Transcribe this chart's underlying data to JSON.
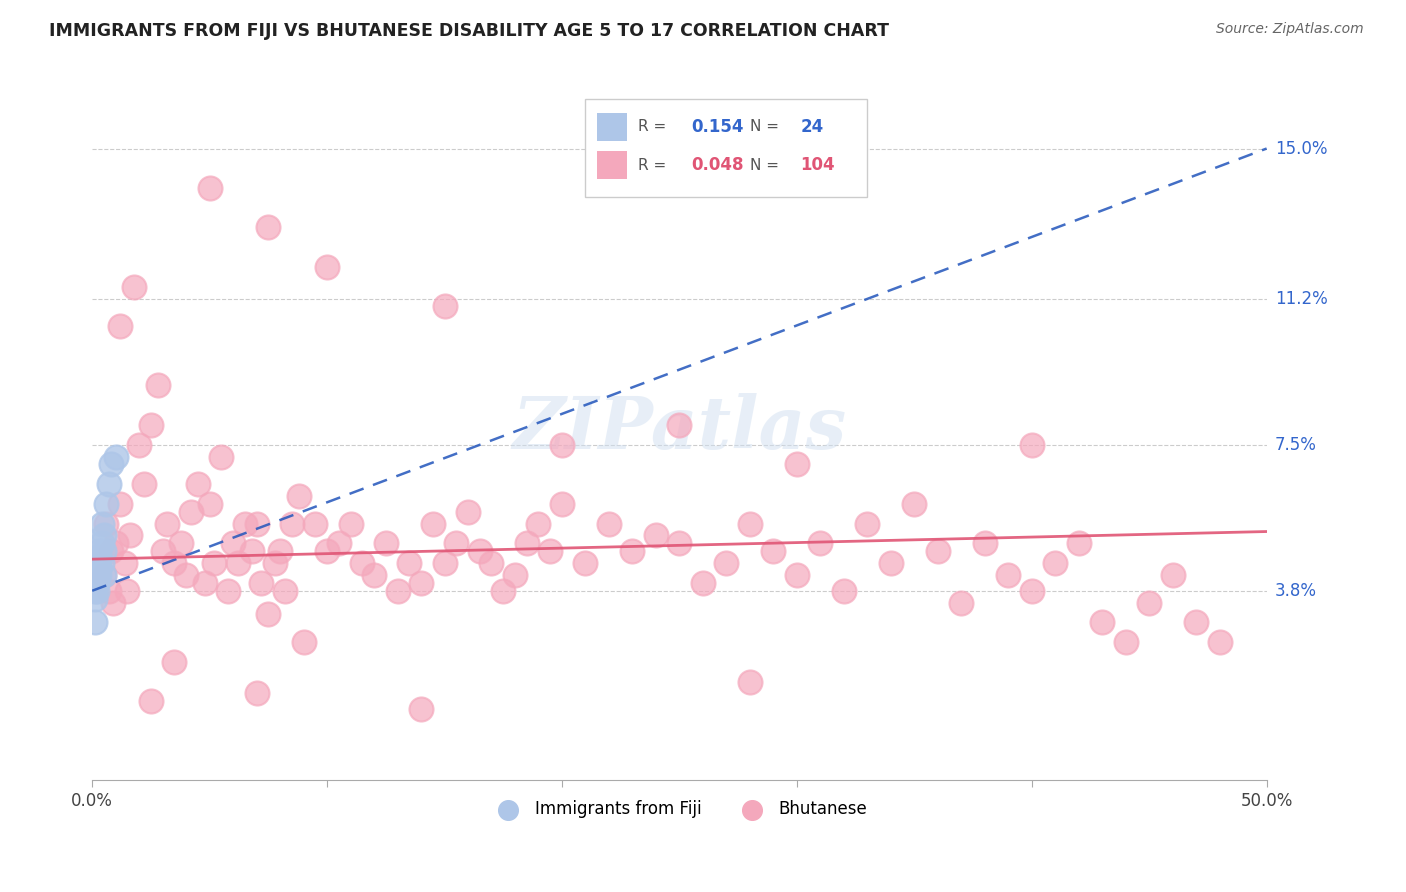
{
  "title": "IMMIGRANTS FROM FIJI VS BHUTANESE DISABILITY AGE 5 TO 17 CORRELATION CHART",
  "source": "Source: ZipAtlas.com",
  "ylabel_ticks": [
    "3.8%",
    "7.5%",
    "11.2%",
    "15.0%"
  ],
  "ylabel_values": [
    0.038,
    0.075,
    0.112,
    0.15
  ],
  "xlim": [
    0.0,
    0.5
  ],
  "ylim": [
    -0.01,
    0.168
  ],
  "fiji_R": "0.154",
  "fiji_N": "24",
  "bhutan_R": "0.048",
  "bhutan_N": "104",
  "fiji_color": "#aec6e8",
  "bhutan_color": "#f4a8bc",
  "fiji_line_color": "#2255bb",
  "bhutan_line_color": "#e05575",
  "fiji_line_style": "--",
  "bhutan_line_style": "-",
  "fiji_x": [
    0.001,
    0.001,
    0.001,
    0.001,
    0.001,
    0.002,
    0.002,
    0.002,
    0.002,
    0.002,
    0.003,
    0.003,
    0.003,
    0.003,
    0.004,
    0.004,
    0.004,
    0.005,
    0.005,
    0.005,
    0.006,
    0.007,
    0.008,
    0.01
  ],
  "fiji_y": [
    0.042,
    0.04,
    0.038,
    0.036,
    0.03,
    0.045,
    0.043,
    0.042,
    0.04,
    0.038,
    0.048,
    0.046,
    0.044,
    0.042,
    0.055,
    0.05,
    0.045,
    0.052,
    0.048,
    0.042,
    0.06,
    0.065,
    0.07,
    0.072
  ],
  "bhutan_x": [
    0.005,
    0.006,
    0.007,
    0.008,
    0.009,
    0.01,
    0.012,
    0.014,
    0.015,
    0.016,
    0.018,
    0.02,
    0.022,
    0.025,
    0.028,
    0.03,
    0.032,
    0.035,
    0.038,
    0.04,
    0.042,
    0.045,
    0.048,
    0.05,
    0.052,
    0.055,
    0.058,
    0.06,
    0.062,
    0.065,
    0.068,
    0.07,
    0.072,
    0.075,
    0.078,
    0.08,
    0.082,
    0.085,
    0.088,
    0.09,
    0.095,
    0.1,
    0.105,
    0.11,
    0.115,
    0.12,
    0.125,
    0.13,
    0.135,
    0.14,
    0.145,
    0.15,
    0.155,
    0.16,
    0.165,
    0.17,
    0.175,
    0.18,
    0.185,
    0.19,
    0.195,
    0.2,
    0.21,
    0.22,
    0.23,
    0.24,
    0.25,
    0.26,
    0.27,
    0.28,
    0.29,
    0.3,
    0.31,
    0.32,
    0.33,
    0.34,
    0.35,
    0.36,
    0.37,
    0.38,
    0.39,
    0.4,
    0.41,
    0.42,
    0.43,
    0.44,
    0.45,
    0.46,
    0.47,
    0.48,
    0.012,
    0.025,
    0.05,
    0.075,
    0.1,
    0.15,
    0.2,
    0.25,
    0.3,
    0.4,
    0.035,
    0.07,
    0.14,
    0.28
  ],
  "bhutan_y": [
    0.042,
    0.055,
    0.038,
    0.048,
    0.035,
    0.05,
    0.06,
    0.045,
    0.038,
    0.052,
    0.115,
    0.075,
    0.065,
    0.08,
    0.09,
    0.048,
    0.055,
    0.045,
    0.05,
    0.042,
    0.058,
    0.065,
    0.04,
    0.06,
    0.045,
    0.072,
    0.038,
    0.05,
    0.045,
    0.055,
    0.048,
    0.055,
    0.04,
    0.032,
    0.045,
    0.048,
    0.038,
    0.055,
    0.062,
    0.025,
    0.055,
    0.048,
    0.05,
    0.055,
    0.045,
    0.042,
    0.05,
    0.038,
    0.045,
    0.04,
    0.055,
    0.045,
    0.05,
    0.058,
    0.048,
    0.045,
    0.038,
    0.042,
    0.05,
    0.055,
    0.048,
    0.06,
    0.045,
    0.055,
    0.048,
    0.052,
    0.05,
    0.04,
    0.045,
    0.055,
    0.048,
    0.042,
    0.05,
    0.038,
    0.055,
    0.045,
    0.06,
    0.048,
    0.035,
    0.05,
    0.042,
    0.038,
    0.045,
    0.05,
    0.03,
    0.025,
    0.035,
    0.042,
    0.03,
    0.025,
    0.105,
    0.01,
    0.14,
    0.13,
    0.12,
    0.11,
    0.075,
    0.08,
    0.07,
    0.075,
    0.02,
    0.012,
    0.008,
    0.015
  ],
  "legend_fiji_label": "Immigrants from Fiji",
  "legend_bhutan_label": "Bhutanese",
  "watermark": "ZIPatlas"
}
